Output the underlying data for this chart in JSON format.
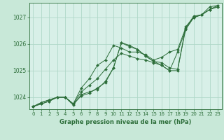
{
  "title": "Graphe pression niveau de la mer (hPa)",
  "background_color": "#c8e8d8",
  "plot_bg_color": "#d8f0e8",
  "grid_color": "#b0d8c8",
  "line_color": "#2d6e3a",
  "marker_color": "#2d6e3a",
  "xlim": [
    -0.5,
    23.5
  ],
  "ylim": [
    1023.55,
    1027.55
  ],
  "yticks": [
    1024,
    1025,
    1026,
    1027
  ],
  "xticks": [
    0,
    1,
    2,
    3,
    4,
    5,
    6,
    7,
    8,
    9,
    10,
    11,
    12,
    13,
    14,
    15,
    16,
    17,
    18,
    19,
    20,
    21,
    22,
    23
  ],
  "series": [
    [
      1023.65,
      1023.75,
      1023.85,
      1024.0,
      1024.0,
      1023.75,
      1024.05,
      1024.15,
      1024.35,
      1024.55,
      1025.1,
      1026.05,
      1025.95,
      1025.8,
      1025.55,
      1025.35,
      1025.3,
      1025.1,
      1025.05,
      1026.55,
      1027.0,
      1027.1,
      1027.3,
      1027.4
    ],
    [
      1023.65,
      1023.75,
      1023.85,
      1024.0,
      1024.0,
      1023.75,
      1024.2,
      1024.45,
      1024.7,
      1025.05,
      1025.4,
      1025.65,
      1025.55,
      1025.45,
      1025.4,
      1025.3,
      1025.2,
      1025.0,
      1025.0,
      1026.65,
      1027.0,
      1027.1,
      1027.3,
      1027.4
    ],
    [
      1023.65,
      1023.8,
      1023.9,
      1024.0,
      1024.0,
      1023.75,
      1024.35,
      1024.7,
      1025.2,
      1025.4,
      1025.95,
      1025.85,
      1025.7,
      1025.7,
      1025.6,
      1025.4,
      1025.5,
      1025.7,
      1025.8,
      1026.6,
      1027.05,
      1027.1,
      1027.4,
      1027.45
    ],
    [
      1023.65,
      1023.8,
      1023.9,
      1024.0,
      1024.0,
      1023.7,
      1024.1,
      1024.2,
      1024.3,
      1024.6,
      1025.1,
      1026.05,
      1025.9,
      1025.8,
      1025.55,
      1025.35,
      1025.2,
      1025.0,
      1025.7,
      1026.55,
      1027.0,
      1027.1,
      1027.3,
      1027.45
    ]
  ]
}
